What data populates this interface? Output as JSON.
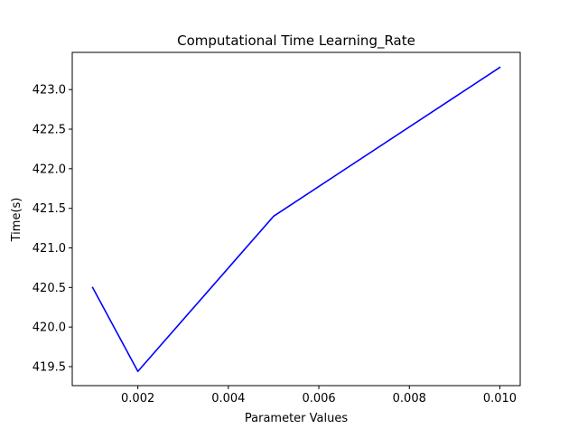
{
  "chart_data": {
    "type": "line",
    "title": "Computational Time Learning_Rate",
    "xlabel": "Parameter Values",
    "ylabel": "Time(s)",
    "xlim": [
      0.00055,
      0.01045
    ],
    "ylim": [
      419.26,
      423.47
    ],
    "x_ticks": [
      {
        "value": 0.002,
        "label": "0.002"
      },
      {
        "value": 0.004,
        "label": "0.004"
      },
      {
        "value": 0.006,
        "label": "0.006"
      },
      {
        "value": 0.008,
        "label": "0.008"
      },
      {
        "value": 0.01,
        "label": "0.010"
      }
    ],
    "y_ticks": [
      {
        "value": 419.5,
        "label": "419.5"
      },
      {
        "value": 420.0,
        "label": "420.0"
      },
      {
        "value": 420.5,
        "label": "420.5"
      },
      {
        "value": 421.0,
        "label": "421.0"
      },
      {
        "value": 421.5,
        "label": "421.5"
      },
      {
        "value": 422.0,
        "label": "422.0"
      },
      {
        "value": 422.5,
        "label": "422.5"
      },
      {
        "value": 423.0,
        "label": "423.0"
      }
    ],
    "grid": false,
    "legend": "none",
    "series": [
      {
        "color": "#0000ff",
        "x": [
          0.001,
          0.002,
          0.005,
          0.01
        ],
        "y": [
          420.5,
          419.44,
          421.4,
          423.28
        ]
      }
    ]
  }
}
